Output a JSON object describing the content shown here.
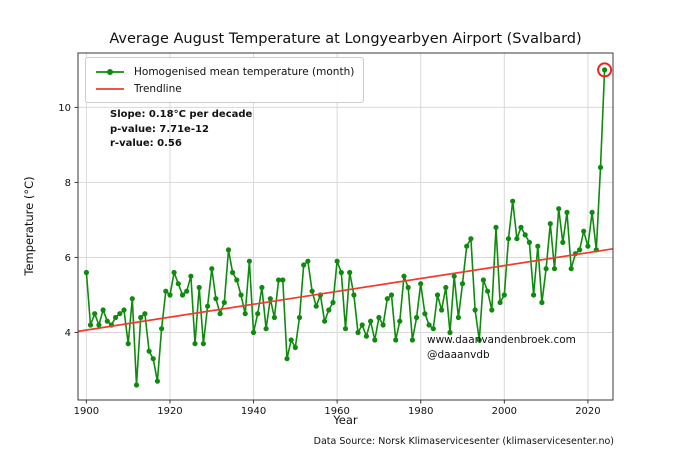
{
  "figure": {
    "title": "Average August Temperature at Longyearbyen Airport (Svalbard)",
    "xlabel": "Year",
    "ylabel": "Temperature (°C)",
    "data_source": "Data Source: Norsk Klimaservicesenter (klimaservicesenter.no)",
    "watermark_line1": "www.daanvandenbroek.com",
    "watermark_line2": "@daaanvdb",
    "annotation": {
      "slope": "Slope: 0.18°C per decade",
      "p_value": "p-value: 7.71e-12",
      "r_value": "r-value: 0.56"
    },
    "legend": [
      {
        "label": "Homogenised mean temperature (month)",
        "color": "#0f8a0f",
        "marker": "line-dot"
      },
      {
        "label": "Trendline",
        "color": "#ef3b30",
        "marker": "line"
      }
    ]
  },
  "chart_data": {
    "type": "line",
    "title": "Average August Temperature at Longyearbyen Airport (Svalbard)",
    "xlabel": "Year",
    "ylabel": "Temperature (°C)",
    "xlim": [
      1898,
      2026
    ],
    "ylim": [
      2.2,
      11.45
    ],
    "xticks": [
      1900,
      1920,
      1940,
      1960,
      1980,
      2000,
      2020
    ],
    "yticks": [
      4,
      6,
      8,
      10
    ],
    "grid": true,
    "legend_position": "upper left",
    "years": [
      1900,
      1901,
      1902,
      1903,
      1904,
      1905,
      1906,
      1907,
      1908,
      1909,
      1910,
      1911,
      1912,
      1913,
      1914,
      1915,
      1916,
      1917,
      1918,
      1919,
      1920,
      1921,
      1922,
      1923,
      1924,
      1925,
      1926,
      1927,
      1928,
      1929,
      1930,
      1931,
      1932,
      1933,
      1934,
      1935,
      1936,
      1937,
      1938,
      1939,
      1940,
      1941,
      1942,
      1943,
      1944,
      1945,
      1946,
      1947,
      1948,
      1949,
      1950,
      1951,
      1952,
      1953,
      1954,
      1955,
      1956,
      1957,
      1958,
      1959,
      1960,
      1961,
      1962,
      1963,
      1964,
      1965,
      1966,
      1967,
      1968,
      1969,
      1970,
      1971,
      1972,
      1973,
      1974,
      1975,
      1976,
      1977,
      1978,
      1979,
      1980,
      1981,
      1982,
      1983,
      1984,
      1985,
      1986,
      1987,
      1988,
      1989,
      1990,
      1991,
      1992,
      1993,
      1994,
      1995,
      1996,
      1997,
      1998,
      1999,
      2000,
      2001,
      2002,
      2003,
      2004,
      2005,
      2006,
      2007,
      2008,
      2009,
      2010,
      2011,
      2012,
      2013,
      2014,
      2015,
      2016,
      2017,
      2018,
      2019,
      2020,
      2021,
      2022,
      2023,
      2024
    ],
    "series": [
      {
        "name": "Homogenised mean temperature (month)",
        "color": "#0f8a0f",
        "values": [
          5.6,
          4.2,
          4.5,
          4.2,
          4.6,
          4.3,
          4.2,
          4.4,
          4.5,
          4.6,
          3.7,
          4.9,
          2.6,
          4.4,
          4.5,
          3.5,
          3.3,
          2.7,
          4.1,
          5.1,
          5.0,
          5.6,
          5.3,
          5.0,
          5.1,
          5.5,
          3.7,
          5.2,
          3.7,
          4.7,
          5.7,
          4.9,
          4.5,
          4.8,
          6.2,
          5.6,
          5.4,
          5.0,
          4.5,
          5.9,
          4.0,
          4.5,
          5.2,
          4.1,
          4.9,
          4.4,
          5.4,
          5.4,
          3.3,
          3.8,
          3.6,
          4.4,
          5.8,
          5.9,
          5.1,
          4.7,
          5.0,
          4.3,
          4.6,
          4.8,
          5.9,
          5.6,
          4.1,
          5.6,
          5.0,
          4.0,
          4.2,
          3.9,
          4.3,
          3.8,
          4.4,
          4.2,
          4.9,
          5.0,
          3.8,
          4.3,
          5.5,
          5.2,
          3.8,
          4.4,
          5.3,
          4.5,
          4.2,
          4.1,
          5.0,
          4.6,
          5.2,
          4.0,
          5.5,
          4.4,
          5.3,
          6.3,
          6.5,
          4.6,
          3.8,
          5.4,
          5.1,
          4.6,
          6.8,
          4.8,
          5.0,
          6.5,
          7.5,
          6.5,
          6.8,
          6.6,
          6.4,
          5.0,
          6.3,
          4.8,
          5.7,
          6.9,
          5.7,
          7.3,
          6.4,
          7.2,
          5.7,
          6.1,
          6.2,
          6.7,
          6.3,
          7.2,
          6.2,
          8.4,
          11.0
        ]
      }
    ],
    "trendline": {
      "name": "Trendline",
      "color": "#ef3b30",
      "slope_c_per_decade": 0.18,
      "p_value": "7.71e-12",
      "r_value": 0.56,
      "x1": 1898,
      "y1": 4.03,
      "x2": 2026,
      "y2": 6.23
    },
    "highlight": {
      "year": 2024,
      "value": 11.0,
      "style": "red-circle"
    }
  }
}
